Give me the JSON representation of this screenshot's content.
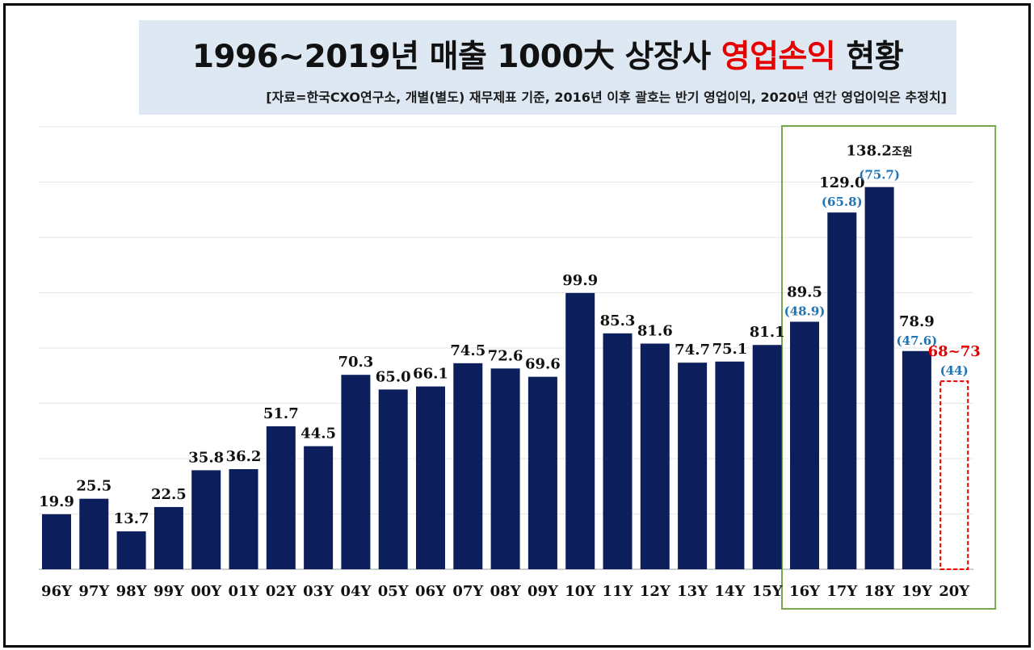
{
  "title": {
    "part1": "1996~2019년 매출 1000大 상장사 ",
    "highlight": "영업손익",
    "part2": " 현황"
  },
  "subtitle": "[자료=한국CXO연구소, 개별(별도) 재무제표 기준, 2016년 이후 괄호는 반기 영업이익, 2020년 연간 영업이익은  추정치]",
  "colors": {
    "bar": "#0c1f5c",
    "accent": "#e60000",
    "half": "#1f74b6",
    "box": "#74a84a",
    "title_bg": "#dde8f3"
  },
  "chart_data": {
    "type": "bar",
    "categories": [
      "96Y",
      "97Y",
      "98Y",
      "99Y",
      "00Y",
      "01Y",
      "02Y",
      "03Y",
      "04Y",
      "05Y",
      "06Y",
      "07Y",
      "08Y",
      "09Y",
      "10Y",
      "11Y",
      "12Y",
      "13Y",
      "14Y",
      "15Y",
      "16Y",
      "17Y",
      "18Y",
      "19Y",
      "20Y"
    ],
    "values": [
      19.9,
      25.5,
      13.7,
      22.5,
      35.8,
      36.2,
      51.7,
      44.5,
      70.3,
      65.0,
      66.1,
      74.5,
      72.6,
      69.6,
      99.9,
      85.3,
      81.6,
      74.7,
      75.1,
      81.1,
      89.5,
      129.0,
      138.2,
      78.9,
      null
    ],
    "value_labels": [
      "19.9",
      "25.5",
      "13.7",
      "22.5",
      "35.8",
      "36.2",
      "51.7",
      "44.5",
      "70.3",
      "65.0",
      "66.1",
      "74.5",
      "72.6",
      "69.6",
      "99.9",
      "85.3",
      "81.6",
      "74.7",
      "75.1",
      "81.1",
      "89.5",
      "129.0",
      "138.2조원",
      "78.9",
      "68~73"
    ],
    "half_year_labels": {
      "16Y": "(48.9)",
      "17Y": "(65.8)",
      "18Y": "(75.7)",
      "19Y": "(47.6)",
      "20Y": "(44)"
    },
    "estimate": {
      "category": "20Y",
      "range": [
        68,
        73
      ],
      "label": "68~73",
      "half_year": 44
    },
    "highlight_range": [
      "16Y",
      "20Y"
    ],
    "ylim": [
      0,
      160
    ],
    "grid": true
  }
}
